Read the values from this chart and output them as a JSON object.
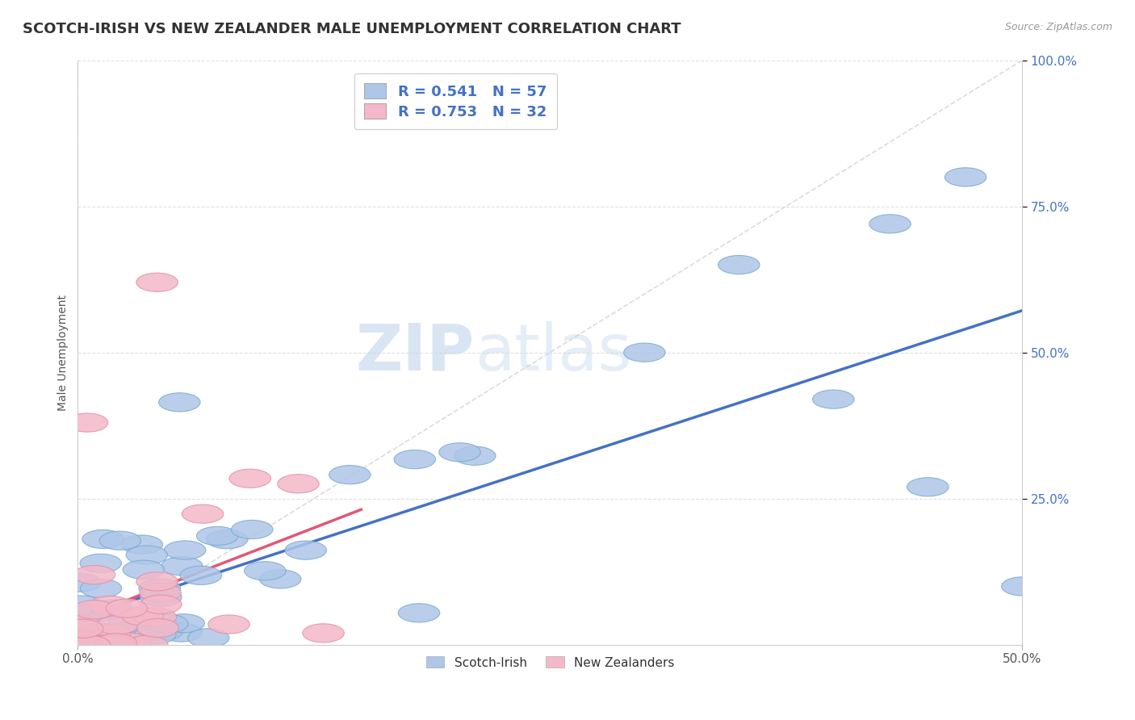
{
  "title": "SCOTCH-IRISH VS NEW ZEALANDER MALE UNEMPLOYMENT CORRELATION CHART",
  "source": "Source: ZipAtlas.com",
  "ylabel": "Male Unemployment",
  "xlim": [
    0,
    0.5
  ],
  "ylim": [
    0,
    1.0
  ],
  "xticks": [
    0.0,
    0.5
  ],
  "yticks": [
    0.25,
    0.5,
    0.75,
    1.0
  ],
  "xticklabels": [
    "0.0%",
    "50.0%"
  ],
  "yticklabels": [
    "25.0%",
    "50.0%",
    "75.0%",
    "100.0%"
  ],
  "watermark_part1": "ZIP",
  "watermark_part2": "atlas",
  "series1_name": "Scotch-Irish",
  "series1_R": 0.541,
  "series1_N": 57,
  "series1_color": "#aec6e8",
  "series1_edge_color": "#7aaad0",
  "series1_line_color": "#4472c4",
  "series2_name": "New Zealanders",
  "series2_R": 0.753,
  "series2_N": 32,
  "series2_color": "#f4b8c8",
  "series2_edge_color": "#e090a8",
  "series2_line_color": "#e05878",
  "legend_box1_color": "#aec6e8",
  "legend_box2_color": "#f4b8c8",
  "legend_text_color": "#4472c4",
  "diag_line_color": "#cccccc",
  "background_color": "#ffffff",
  "grid_color": "#e0e0e0",
  "title_fontsize": 13,
  "axis_label_fontsize": 10,
  "tick_color": "#4472c4",
  "ytick_side": "right"
}
